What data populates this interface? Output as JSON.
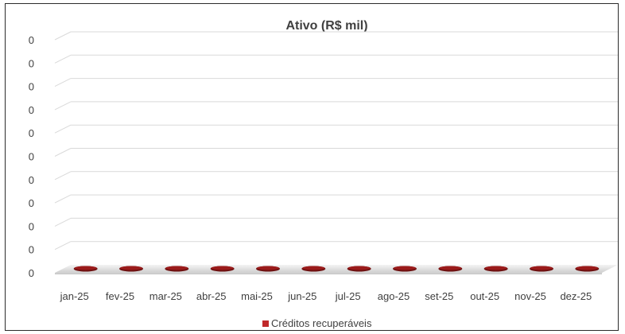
{
  "chart_data": {
    "type": "bar",
    "title": "Ativo (R$ mil)",
    "categories": [
      "jan-25",
      "fev-25",
      "mar-25",
      "abr-25",
      "mai-25",
      "jun-25",
      "jul-25",
      "ago-25",
      "set-25",
      "out-25",
      "nov-25",
      "dez-25"
    ],
    "series": [
      {
        "name": "Créditos recuperáveis",
        "values": [
          0,
          0,
          0,
          0,
          0,
          0,
          0,
          0,
          0,
          0,
          0,
          0
        ],
        "color": "#9b1b1b"
      }
    ],
    "y_tick_labels": [
      "0",
      "0",
      "0",
      "0",
      "0",
      "0",
      "0",
      "0",
      "0",
      "0",
      "0"
    ],
    "ylim": [
      0,
      1
    ],
    "grid": true,
    "legend_position": "bottom",
    "style": "3d-column"
  }
}
